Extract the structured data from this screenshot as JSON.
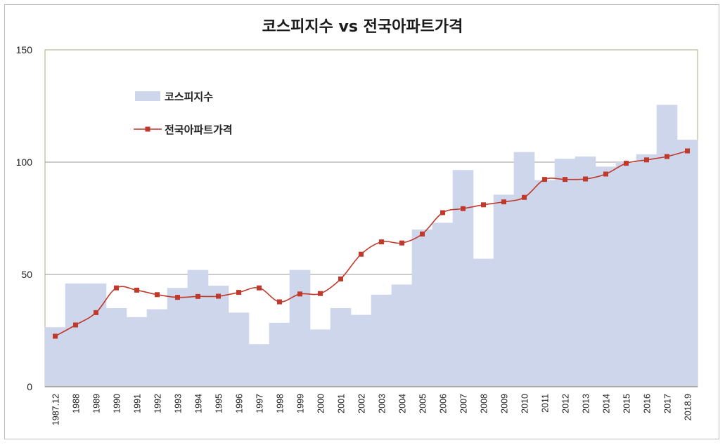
{
  "chart_data": {
    "type": "bar+line",
    "title": "코스피지수 vs 전국아파트가격",
    "xlabel": "",
    "ylabel": "",
    "ylim": [
      0,
      150
    ],
    "yticks": [
      0,
      50,
      100,
      150
    ],
    "grid": "horizontal",
    "legend_position": "top-left",
    "categories": [
      "1987.12",
      "1988",
      "1989",
      "1990",
      "1991",
      "1992",
      "1993",
      "1994",
      "1995",
      "1996",
      "1997",
      "1998",
      "1999",
      "2000",
      "2001",
      "2002",
      "2003",
      "2004",
      "2005",
      "2006",
      "2007",
      "2008",
      "2009",
      "2010",
      "2011",
      "2012",
      "2013",
      "2014",
      "2015",
      "2016",
      "2017",
      "2018.9"
    ],
    "series": [
      {
        "name": "코스피지수",
        "kind": "area-bar",
        "color": "#cdd6ea",
        "values": [
          26.5,
          46,
          46,
          35,
          31,
          34.5,
          44,
          52,
          45,
          33,
          19,
          28.5,
          52,
          25.5,
          35,
          32,
          41,
          45.5,
          70,
          73,
          96.5,
          57,
          85.5,
          104.5,
          92,
          101.5,
          102.5,
          98,
          100,
          103.5,
          125.5,
          110
        ]
      },
      {
        "name": "전국아파트가격",
        "kind": "line",
        "color": "#c0392b",
        "values": [
          22.5,
          27.5,
          33,
          44,
          43,
          41,
          39.8,
          40.2,
          40.3,
          42,
          44,
          37.8,
          41.3,
          41.5,
          48,
          59,
          64.5,
          64,
          68,
          77.5,
          79.3,
          81,
          82.3,
          84.3,
          92.3,
          92.3,
          92.5,
          94.7,
          99.5,
          101,
          102.5,
          105
        ]
      }
    ]
  }
}
